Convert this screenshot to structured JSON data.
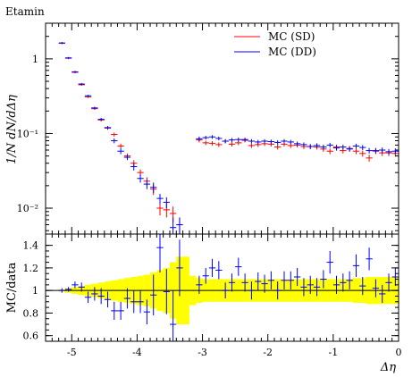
{
  "chart_data": [
    {
      "type": "scatter",
      "title": "Etamin",
      "ylabel": "1/N dN/dΔη",
      "xlabel": "",
      "yscale": "log",
      "xlim": [
        -5.4,
        0
      ],
      "ylim": [
        0.0045,
        3.0
      ],
      "yticks": [
        0.01,
        0.1,
        1
      ],
      "yticklabels": [
        "10⁻²",
        "10⁻¹",
        "1"
      ],
      "legend_position": "top-right",
      "grid": false,
      "series": [
        {
          "name": "MC (SD)",
          "color": "#ff0000",
          "x": [
            -5.15,
            -5.05,
            -4.95,
            -4.85,
            -4.75,
            -4.65,
            -4.55,
            -4.45,
            -4.35,
            -4.25,
            -4.15,
            -4.05,
            -3.95,
            -3.85,
            -3.75,
            -3.65,
            -3.55,
            -3.45,
            -3.35,
            -3.05,
            -2.95,
            -2.85,
            -2.75,
            -2.65,
            -2.55,
            -2.45,
            -2.35,
            -2.25,
            -2.15,
            -2.05,
            -1.95,
            -1.85,
            -1.75,
            -1.65,
            -1.55,
            -1.45,
            -1.35,
            -1.25,
            -1.15,
            -1.05,
            -0.95,
            -0.85,
            -0.75,
            -0.65,
            -0.55,
            -0.45,
            -0.35,
            -0.25,
            -0.15,
            -0.05
          ],
          "y": [
            1.62,
            1.02,
            0.66,
            0.45,
            0.31,
            0.215,
            0.152,
            0.118,
            0.097,
            0.068,
            0.05,
            0.04,
            0.03,
            0.023,
            0.018,
            0.01,
            0.0095,
            0.0085,
            0.006,
            0.082,
            0.075,
            0.074,
            0.071,
            0.079,
            0.072,
            0.075,
            0.081,
            0.069,
            0.071,
            0.073,
            0.072,
            0.066,
            0.072,
            0.069,
            0.07,
            0.067,
            0.067,
            0.066,
            0.062,
            0.058,
            0.066,
            0.059,
            0.063,
            0.058,
            0.054,
            0.047,
            0.058,
            0.055,
            0.055,
            0.054
          ],
          "y_err": [
            0.05,
            0.03,
            0.02,
            0.015,
            0.01,
            0.008,
            0.007,
            0.006,
            0.006,
            0.005,
            0.004,
            0.004,
            0.003,
            0.003,
            0.003,
            0.002,
            0.002,
            0.002,
            0.0015,
            0.006,
            0.005,
            0.005,
            0.005,
            0.005,
            0.005,
            0.005,
            0.005,
            0.005,
            0.005,
            0.005,
            0.005,
            0.005,
            0.005,
            0.005,
            0.005,
            0.005,
            0.005,
            0.005,
            0.005,
            0.005,
            0.005,
            0.005,
            0.005,
            0.005,
            0.005,
            0.005,
            0.005,
            0.005,
            0.005,
            0.005
          ]
        },
        {
          "name": "MC (DD)",
          "color": "#0000ff",
          "x": [
            -5.15,
            -5.05,
            -4.95,
            -4.85,
            -4.75,
            -4.65,
            -4.55,
            -4.45,
            -4.35,
            -4.25,
            -4.15,
            -4.05,
            -3.95,
            -3.85,
            -3.75,
            -3.65,
            -3.55,
            -3.45,
            -3.35,
            -3.05,
            -2.95,
            -2.85,
            -2.75,
            -2.65,
            -2.55,
            -2.45,
            -2.35,
            -2.25,
            -2.15,
            -2.05,
            -1.95,
            -1.85,
            -1.75,
            -1.65,
            -1.55,
            -1.45,
            -1.35,
            -1.25,
            -1.15,
            -1.05,
            -0.95,
            -0.85,
            -0.75,
            -0.65,
            -0.55,
            -0.45,
            -0.35,
            -0.25,
            -0.15,
            -0.05
          ],
          "y": [
            1.63,
            1.03,
            0.67,
            0.46,
            0.32,
            0.22,
            0.155,
            0.12,
            0.08,
            0.058,
            0.048,
            0.036,
            0.025,
            0.021,
            0.019,
            0.0135,
            0.012,
            0.0055,
            0.006,
            0.085,
            0.088,
            0.09,
            0.086,
            0.079,
            0.082,
            0.083,
            0.083,
            0.079,
            0.077,
            0.079,
            0.078,
            0.076,
            0.079,
            0.077,
            0.073,
            0.071,
            0.067,
            0.069,
            0.066,
            0.07,
            0.064,
            0.066,
            0.062,
            0.068,
            0.065,
            0.059,
            0.059,
            0.06,
            0.057,
            0.058
          ],
          "y_err": [
            0.05,
            0.03,
            0.02,
            0.015,
            0.01,
            0.008,
            0.007,
            0.006,
            0.006,
            0.005,
            0.004,
            0.004,
            0.003,
            0.003,
            0.003,
            0.002,
            0.002,
            0.002,
            0.0015,
            0.006,
            0.005,
            0.005,
            0.005,
            0.005,
            0.005,
            0.005,
            0.005,
            0.005,
            0.005,
            0.005,
            0.005,
            0.005,
            0.005,
            0.005,
            0.005,
            0.005,
            0.005,
            0.005,
            0.005,
            0.005,
            0.005,
            0.005,
            0.005,
            0.005,
            0.005,
            0.005,
            0.005,
            0.005,
            0.005,
            0.005
          ]
        }
      ]
    },
    {
      "type": "scatter",
      "ylabel": "MC/data",
      "xlabel": "Δη",
      "xlim": [
        -5.4,
        0
      ],
      "ylim": [
        0.55,
        1.5
      ],
      "xticks": [
        -5,
        -4,
        -3,
        -2,
        -1,
        0
      ],
      "xticklabels": [
        "-5",
        "-4",
        "-3",
        "-2",
        "-1",
        "0"
      ],
      "yticks": [
        0.6,
        0.8,
        1,
        1.2,
        1.4
      ],
      "yticklabels": [
        "0.6",
        "0.8",
        "1",
        "1.2",
        "1.4"
      ],
      "reference_line": 1,
      "grid": false,
      "band": {
        "color": "#ffff00",
        "x": [
          -5.2,
          -5.1,
          -5.0,
          -4.9,
          -4.8,
          -4.7,
          -4.6,
          -4.5,
          -4.4,
          -4.3,
          -4.2,
          -4.1,
          -4.0,
          -3.9,
          -3.8,
          -3.7,
          -3.6,
          -3.5,
          -3.4,
          -3.3,
          -3.2,
          -3.1,
          -3.0,
          -2.9,
          -2.8,
          -2.7,
          -2.6,
          -2.5,
          -2.4,
          -2.3,
          -2.2,
          -2.1,
          -2.0,
          -1.9,
          -1.8,
          -1.7,
          -1.6,
          -1.5,
          -1.4,
          -1.3,
          -1.2,
          -1.1,
          -1.0,
          -0.9,
          -0.8,
          -0.7,
          -0.6,
          -0.5,
          -0.4,
          -0.3,
          -0.2,
          -0.1,
          0.0
        ],
        "half_width": [
          0.01,
          0.02,
          0.03,
          0.04,
          0.05,
          0.06,
          0.07,
          0.08,
          0.09,
          0.1,
          0.11,
          0.12,
          0.13,
          0.14,
          0.16,
          0.18,
          0.2,
          0.25,
          0.3,
          0.3,
          0.13,
          0.11,
          0.1,
          0.1,
          0.1,
          0.1,
          0.1,
          0.1,
          0.1,
          0.1,
          0.1,
          0.1,
          0.1,
          0.1,
          0.1,
          0.1,
          0.1,
          0.1,
          0.1,
          0.1,
          0.1,
          0.1,
          0.1,
          0.1,
          0.1,
          0.11,
          0.11,
          0.12,
          0.12,
          0.12,
          0.12,
          0.12,
          0.12
        ]
      },
      "series": [
        {
          "name": "MC (DD)",
          "color": "#0000ff",
          "x": [
            -5.15,
            -5.05,
            -4.95,
            -4.85,
            -4.75,
            -4.65,
            -4.55,
            -4.45,
            -4.35,
            -4.25,
            -4.15,
            -4.05,
            -3.95,
            -3.85,
            -3.75,
            -3.65,
            -3.55,
            -3.45,
            -3.35,
            -3.05,
            -2.95,
            -2.85,
            -2.75,
            -2.65,
            -2.55,
            -2.45,
            -2.35,
            -2.25,
            -2.15,
            -2.05,
            -1.95,
            -1.85,
            -1.75,
            -1.65,
            -1.55,
            -1.45,
            -1.35,
            -1.25,
            -1.15,
            -1.05,
            -0.95,
            -0.85,
            -0.75,
            -0.65,
            -0.55,
            -0.45,
            -0.35,
            -0.25,
            -0.15,
            -0.05
          ],
          "y": [
            1.0,
            1.01,
            1.05,
            1.03,
            0.94,
            0.97,
            0.95,
            0.92,
            0.82,
            0.82,
            0.93,
            0.9,
            0.9,
            0.81,
            0.96,
            1.38,
            0.99,
            0.7,
            1.2,
            1.05,
            1.13,
            1.2,
            1.18,
            1.0,
            1.07,
            1.21,
            1.07,
            1.0,
            1.08,
            1.06,
            1.09,
            1.0,
            1.09,
            1.09,
            1.12,
            1.03,
            1.05,
            1.03,
            1.1,
            1.25,
            1.05,
            1.07,
            1.09,
            1.22,
            1.04,
            1.28,
            1.02,
            0.97,
            1.07,
            1.12
          ],
          "y_err": [
            0.02,
            0.02,
            0.03,
            0.04,
            0.05,
            0.06,
            0.07,
            0.07,
            0.08,
            0.08,
            0.09,
            0.1,
            0.1,
            0.11,
            0.18,
            0.22,
            0.2,
            0.3,
            0.25,
            0.08,
            0.07,
            0.08,
            0.08,
            0.07,
            0.08,
            0.08,
            0.08,
            0.08,
            0.08,
            0.08,
            0.08,
            0.08,
            0.08,
            0.08,
            0.08,
            0.08,
            0.08,
            0.08,
            0.08,
            0.1,
            0.08,
            0.08,
            0.08,
            0.1,
            0.08,
            0.1,
            0.08,
            0.08,
            0.08,
            0.08
          ]
        }
      ]
    }
  ]
}
